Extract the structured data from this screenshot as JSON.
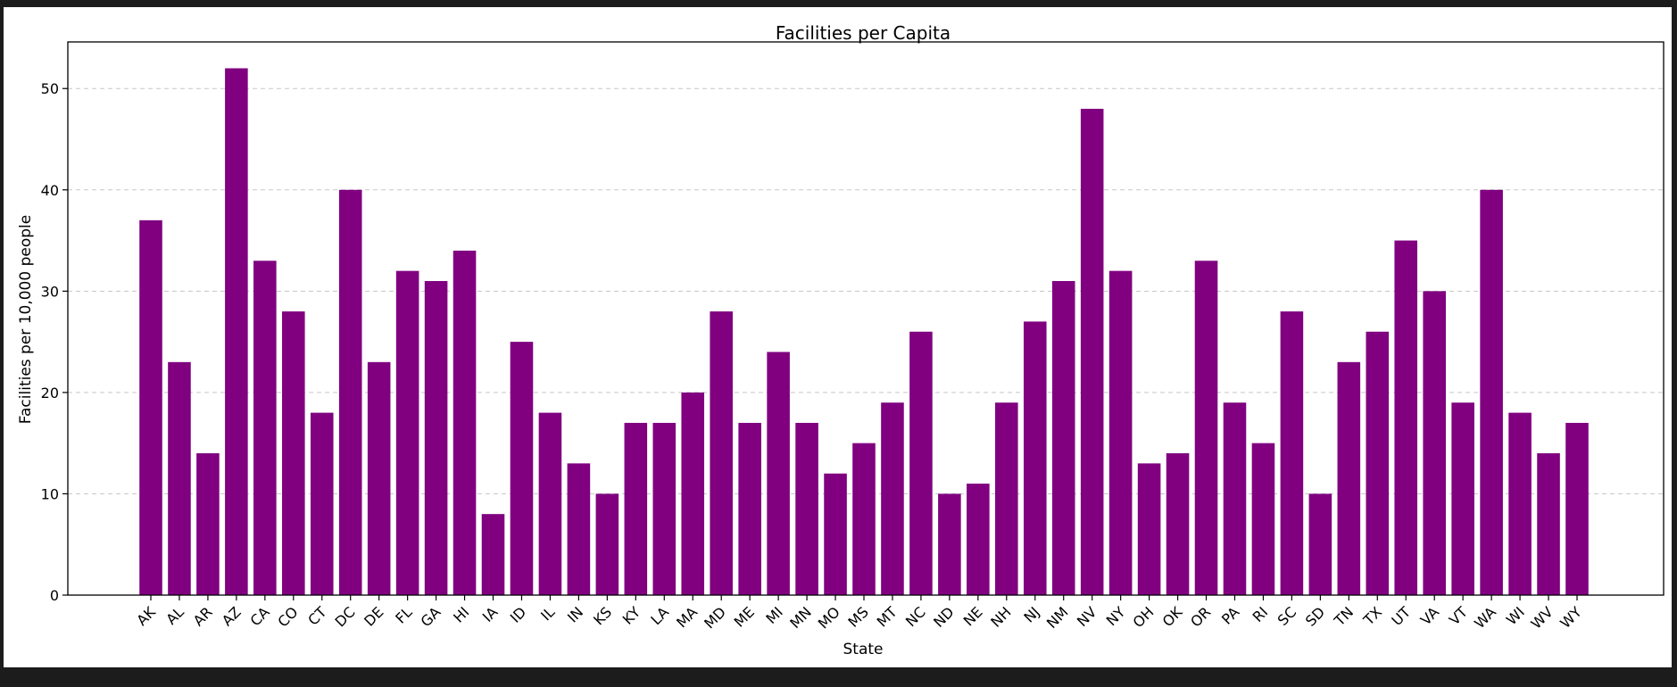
{
  "chart_data": {
    "type": "bar",
    "title": "Facilities per Capita",
    "xlabel": "State",
    "ylabel": "Facilities per 10,000 people",
    "categories": [
      "AK",
      "AL",
      "AR",
      "AZ",
      "CA",
      "CO",
      "CT",
      "DC",
      "DE",
      "FL",
      "GA",
      "HI",
      "IA",
      "ID",
      "IL",
      "IN",
      "KS",
      "KY",
      "LA",
      "MA",
      "MD",
      "ME",
      "MI",
      "MN",
      "MO",
      "MS",
      "MT",
      "NC",
      "ND",
      "NE",
      "NH",
      "NJ",
      "NM",
      "NV",
      "NY",
      "OH",
      "OK",
      "OR",
      "PA",
      "RI",
      "SC",
      "SD",
      "TN",
      "TX",
      "UT",
      "VA",
      "VT",
      "WA",
      "WI",
      "WV",
      "WY"
    ],
    "values": [
      37,
      23,
      14,
      52,
      33,
      28,
      18,
      40,
      23,
      32,
      31,
      34,
      8,
      25,
      18,
      13,
      10,
      17,
      17,
      20,
      28,
      17,
      24,
      17,
      12,
      15,
      19,
      26,
      10,
      11,
      19,
      27,
      31,
      48,
      32,
      13,
      14,
      33,
      19,
      15,
      28,
      10,
      23,
      26,
      35,
      30,
      19,
      40,
      18,
      14,
      17
    ],
    "yticks": [
      0,
      10,
      20,
      30,
      40,
      50
    ],
    "ylim": [
      0,
      54.6
    ],
    "grid": "y-dashed",
    "bar_color": "#800080",
    "grid_color": "#c8c8c8"
  }
}
